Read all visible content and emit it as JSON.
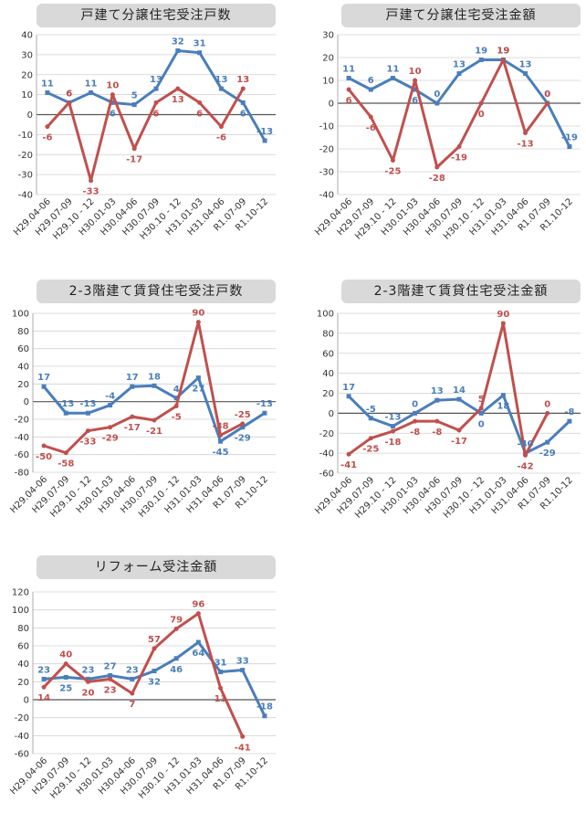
{
  "colors": {
    "blue": "#4a7ebb",
    "red": "#c0504d",
    "title_bg": "#d9d9d9"
  },
  "chart_data": [
    {
      "type": "line",
      "title": "戸建て分譲住宅受注戸数",
      "categories": [
        "H29.04-06",
        "H29.07-09",
        "H29.10 - 12",
        "H30.01-03",
        "H30.04-06",
        "H30.07-09",
        "H30.10 - 12",
        "H31.01-03",
        "H31.04-06",
        "R1.07-09",
        "R1.10-12"
      ],
      "ylim": [
        -40,
        40
      ],
      "yticks": [
        -40,
        -30,
        -20,
        -10,
        0,
        10,
        20,
        30,
        40
      ],
      "series": [
        {
          "color": "#4a7ebb",
          "values": [
            11,
            6,
            11,
            6,
            5,
            13,
            32,
            31,
            13,
            6,
            -13
          ]
        },
        {
          "color": "#c0504d",
          "values": [
            -6,
            6,
            -33,
            10,
            -17,
            6,
            13,
            6,
            -6,
            13,
            null
          ]
        }
      ]
    },
    {
      "type": "line",
      "title": "戸建て分譲住宅受注金額",
      "categories": [
        "H29.04-06",
        "H29.07-09",
        "H29.10 - 12",
        "H30.01-03",
        "H30.04-06",
        "H30.07-09",
        "H30.10 - 12",
        "H31.01-03",
        "H31.04-06",
        "R1.07-09",
        "R1.10-12"
      ],
      "ylim": [
        -40,
        30
      ],
      "yticks": [
        -40,
        -30,
        -20,
        -10,
        0,
        10,
        20,
        30
      ],
      "series": [
        {
          "color": "#4a7ebb",
          "values": [
            11,
            6,
            11,
            6,
            0,
            13,
            19,
            19,
            13,
            0,
            -19
          ]
        },
        {
          "color": "#c0504d",
          "values": [
            6,
            -6,
            -25,
            10,
            -28,
            -19,
            0,
            19,
            -13,
            0,
            null
          ]
        }
      ]
    },
    {
      "type": "line",
      "title": "2-3階建て賃貸住宅受注戸数",
      "categories": [
        "H29.04-06",
        "H29.07-09",
        "H29.10 - 12",
        "H30.01-03",
        "H30.04-06",
        "H30.07-09",
        "H30.10 - 12",
        "H31.01-03",
        "H31.04-06",
        "R1.07-09",
        "R1.10-12"
      ],
      "ylim": [
        -80,
        100
      ],
      "yticks": [
        -80,
        -60,
        -40,
        -20,
        0,
        20,
        40,
        60,
        80,
        100
      ],
      "series": [
        {
          "color": "#4a7ebb",
          "values": [
            17,
            -13,
            -13,
            -4,
            17,
            18,
            4,
            27,
            -45,
            -29,
            -13
          ]
        },
        {
          "color": "#c0504d",
          "values": [
            -50,
            -58,
            -33,
            -29,
            -17,
            -21,
            -5,
            90,
            -38,
            -25,
            null
          ]
        }
      ]
    },
    {
      "type": "line",
      "title": "2-3階建て賃貸住宅受注金額",
      "categories": [
        "H29.04-06",
        "H29.07-09",
        "H29.10 - 12",
        "H30.01-03",
        "H30.04-06",
        "H30.07-09",
        "H30.10 - 12",
        "H31.01-03",
        "H31.04-06",
        "R1.07-09",
        "R1.10-12"
      ],
      "ylim": [
        -60,
        100
      ],
      "yticks": [
        -60,
        -40,
        -20,
        0,
        20,
        40,
        60,
        80,
        100
      ],
      "series": [
        {
          "color": "#4a7ebb",
          "values": [
            17,
            -5,
            -13,
            0,
            13,
            14,
            0,
            18,
            -40,
            -29,
            -8
          ]
        },
        {
          "color": "#c0504d",
          "values": [
            -41,
            -25,
            -18,
            -8,
            -8,
            -17,
            5,
            90,
            -42,
            0,
            null
          ]
        }
      ]
    },
    {
      "type": "line",
      "title": "リフォーム受注金額",
      "categories": [
        "H29.04-06",
        "H29.07-09",
        "H29.10 - 12",
        "H30.01-03",
        "H30.04-06",
        "H30.07-09",
        "H30.10 - 12",
        "H31.01-03",
        "H31.04-06",
        "R1.07-09",
        "R1.10-12"
      ],
      "ylim": [
        -60,
        120
      ],
      "yticks": [
        -60,
        -40,
        -20,
        0,
        20,
        40,
        60,
        80,
        100,
        120
      ],
      "series": [
        {
          "color": "#4a7ebb",
          "values": [
            23,
            25,
            23,
            27,
            23,
            32,
            46,
            64,
            31,
            33,
            -18
          ]
        },
        {
          "color": "#c0504d",
          "values": [
            14,
            40,
            20,
            23,
            7,
            57,
            79,
            96,
            13,
            -41,
            null
          ]
        }
      ]
    }
  ]
}
